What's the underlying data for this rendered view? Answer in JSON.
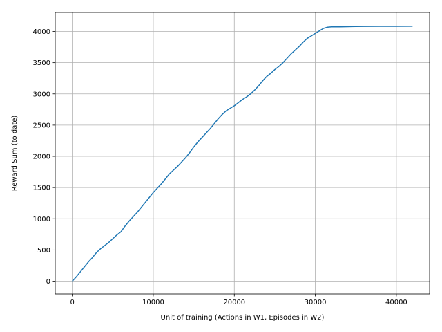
{
  "chart_data": {
    "type": "line",
    "title": "",
    "xlabel": "Unit of training (Actions in W1, Episodes in W2)",
    "ylabel": "Reward Sum (to date)",
    "xlim": [
      -2100,
      44100
    ],
    "ylim": [
      -205,
      4305
    ],
    "xticks": [
      0,
      10000,
      20000,
      30000,
      40000
    ],
    "yticks": [
      0,
      500,
      1000,
      1500,
      2000,
      2500,
      3000,
      3500,
      4000
    ],
    "grid": true,
    "legend": "none",
    "series": [
      {
        "color": "#1f77b4",
        "x": [
          0,
          500,
          1000,
          1500,
          2000,
          2500,
          3000,
          3500,
          4000,
          4500,
          5000,
          5500,
          6000,
          6500,
          7000,
          7500,
          8000,
          8500,
          9000,
          9500,
          10000,
          10500,
          11000,
          11500,
          12000,
          12500,
          13000,
          13500,
          14000,
          14500,
          15000,
          15500,
          16000,
          16500,
          17000,
          17500,
          18000,
          18500,
          19000,
          19500,
          20000,
          20500,
          21000,
          21500,
          22000,
          22500,
          23000,
          23500,
          24000,
          24500,
          25000,
          25500,
          26000,
          26500,
          27000,
          27500,
          28000,
          28500,
          29000,
          29500,
          30000,
          30500,
          31000,
          31500,
          32000,
          33000,
          34000,
          35000,
          36000,
          38000,
          40000,
          42000
        ],
        "y": [
          0,
          70,
          150,
          230,
          310,
          380,
          460,
          520,
          570,
          620,
          680,
          740,
          790,
          880,
          960,
          1030,
          1100,
          1180,
          1260,
          1340,
          1420,
          1490,
          1560,
          1640,
          1720,
          1780,
          1840,
          1910,
          1980,
          2060,
          2150,
          2230,
          2300,
          2370,
          2440,
          2520,
          2600,
          2670,
          2730,
          2770,
          2810,
          2860,
          2910,
          2950,
          3000,
          3060,
          3130,
          3210,
          3280,
          3330,
          3390,
          3440,
          3500,
          3570,
          3640,
          3700,
          3760,
          3830,
          3890,
          3930,
          3970,
          4010,
          4050,
          4070,
          4075,
          4075,
          4078,
          4080,
          4082,
          4083,
          4084,
          4085
        ]
      }
    ]
  }
}
